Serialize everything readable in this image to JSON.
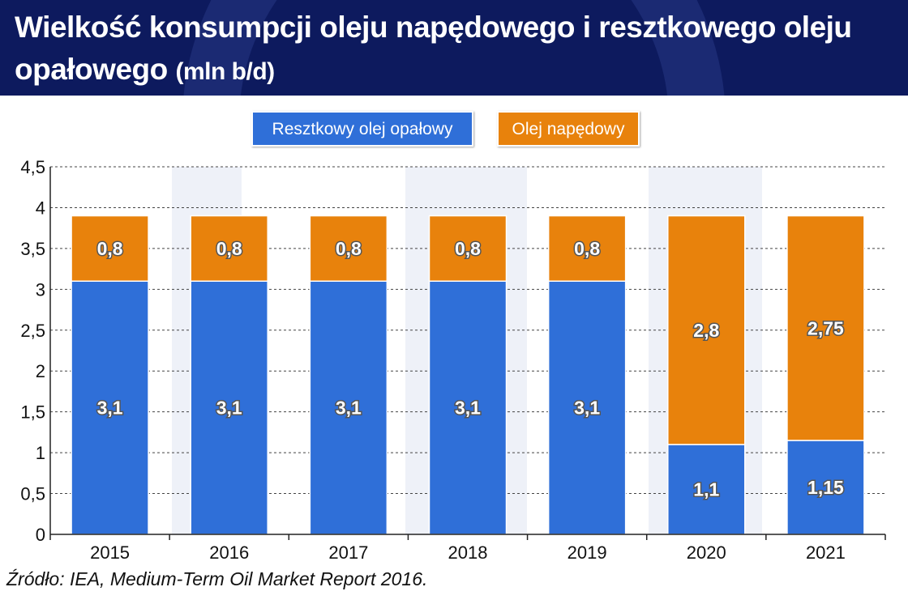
{
  "header": {
    "title": "Wielkość konsumpcji oleju napędowego i resztkowego oleju opałowego",
    "title_unit": "(mln b/d)"
  },
  "footer": {
    "source": "Źródło: IEA, Medium-Term Oil Market Report 2016."
  },
  "colors": {
    "header_bg": "#0d1a5e",
    "residual": "#2f6fd8",
    "diesel": "#e8820c",
    "grid": "#444444",
    "watermark": "#eef1f8"
  },
  "chart_data": {
    "type": "bar",
    "stacked": true,
    "categories": [
      "2015",
      "2016",
      "2017",
      "2018",
      "2019",
      "2020",
      "2021"
    ],
    "series": [
      {
        "name": "Resztkowy olej opałowy",
        "values": [
          3.1,
          3.1,
          3.1,
          3.1,
          3.1,
          1.1,
          1.15
        ],
        "labels": [
          "3,1",
          "3,1",
          "3,1",
          "3,1",
          "3,1",
          "1,1",
          "1,15"
        ]
      },
      {
        "name": "Olej napędowy",
        "values": [
          0.8,
          0.8,
          0.8,
          0.8,
          0.8,
          2.8,
          2.75
        ],
        "labels": [
          "0,8",
          "0,8",
          "0,8",
          "0,8",
          "0,8",
          "2,8",
          "2,75"
        ]
      }
    ],
    "ylim": [
      0,
      4.5
    ],
    "yticks": [
      0,
      0.5,
      1,
      1.5,
      2,
      2.5,
      3,
      3.5,
      4,
      4.5
    ],
    "ytick_labels": [
      "0",
      "0,5",
      "1",
      "1,5",
      "2",
      "2,5",
      "3",
      "3,5",
      "4",
      "4,5"
    ],
    "grid": true,
    "legend_position": "top-center"
  }
}
